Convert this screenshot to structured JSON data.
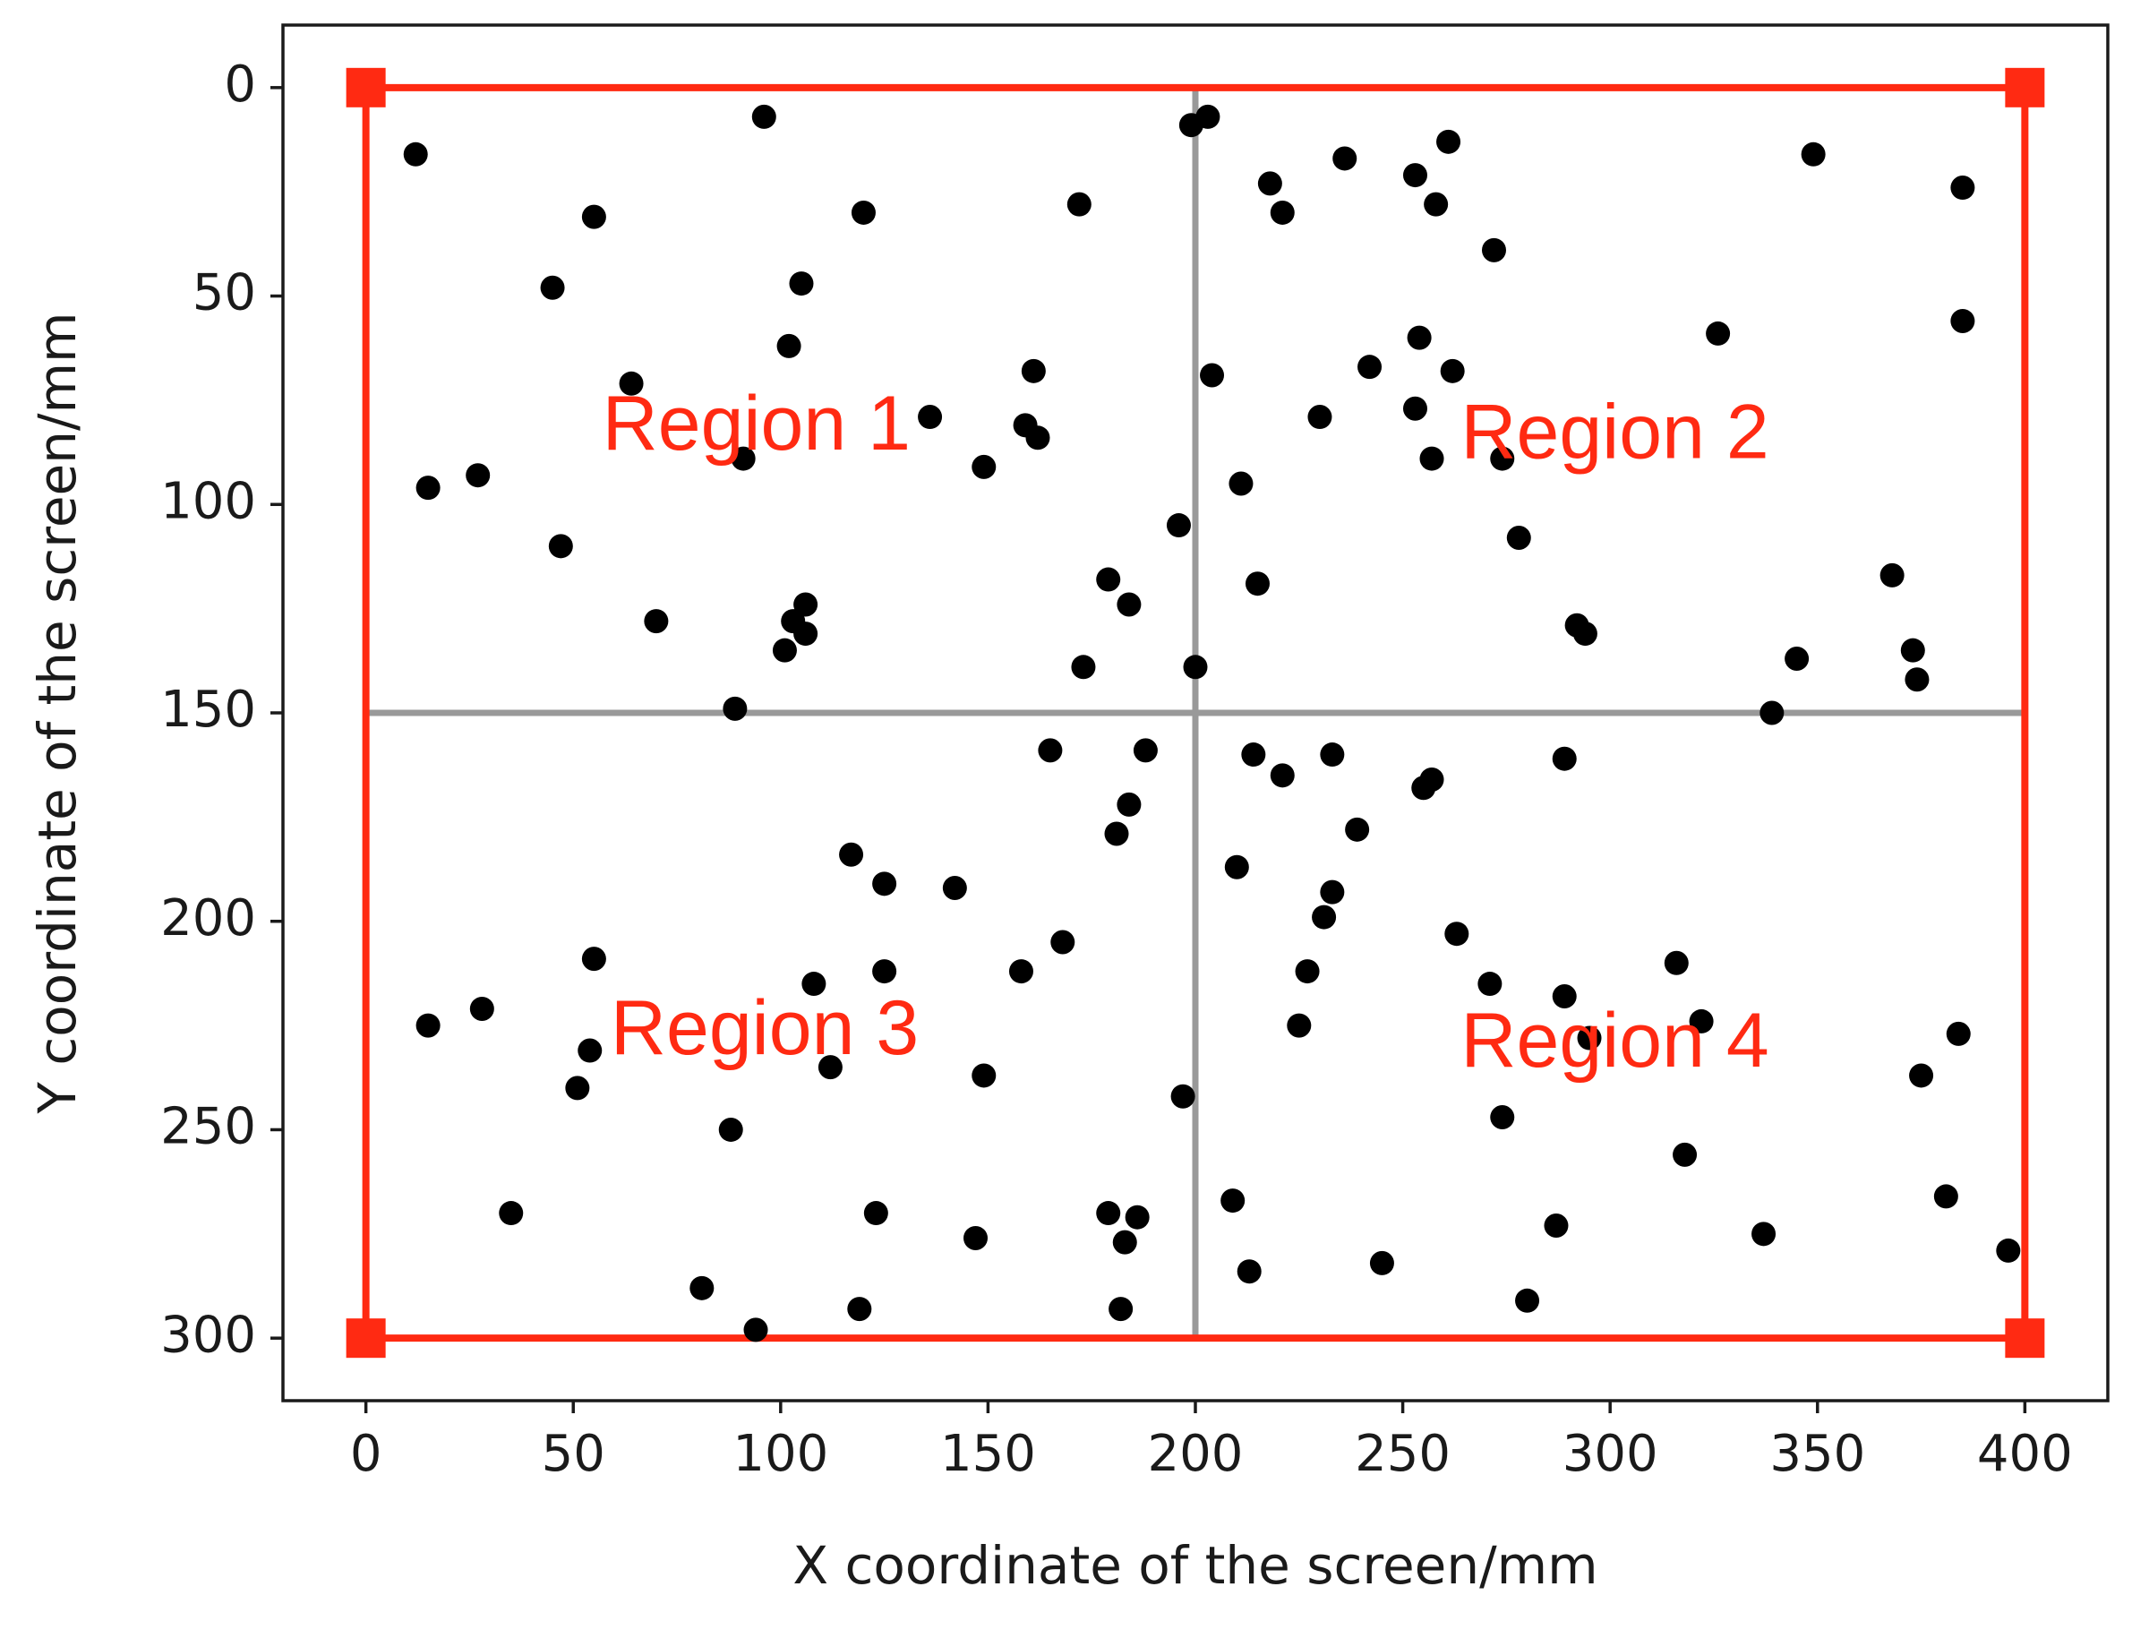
{
  "chart_data": {
    "type": "scatter",
    "xlabel": "X coordinate of the screen/mm",
    "ylabel": "Y coordinate of the screen/mm",
    "xlim": [
      -20,
      420
    ],
    "ylim": [
      315,
      -15
    ],
    "y_inverted": true,
    "xticks": [
      0,
      50,
      100,
      150,
      200,
      250,
      300,
      350,
      400
    ],
    "xtick_labels": [
      "0",
      "50",
      "100",
      "150",
      "200",
      "250",
      "300",
      "350",
      "400"
    ],
    "yticks": [
      0,
      50,
      100,
      150,
      200,
      250,
      300
    ],
    "ytick_labels": [
      "0",
      "50",
      "100",
      "150",
      "200",
      "250",
      "300"
    ],
    "grid": false,
    "colors": {
      "points": "#000000",
      "boundary": "#ff2a12",
      "dividers": "#999999",
      "region_text": "#ff2a12"
    },
    "boundary": {
      "corners": [
        [
          0,
          0
        ],
        [
          400,
          0
        ],
        [
          400,
          300
        ],
        [
          0,
          300
        ]
      ]
    },
    "dividers": {
      "x": 200,
      "y": 150
    },
    "regions": [
      {
        "label": "Region 1",
        "x": 57,
        "y": 82
      },
      {
        "label": "Region 2",
        "x": 264,
        "y": 84
      },
      {
        "label": "Region 3",
        "x": 59,
        "y": 227
      },
      {
        "label": "Region 4",
        "x": 264,
        "y": 230
      }
    ],
    "points": [
      [
        12,
        16
      ],
      [
        96,
        7
      ],
      [
        55,
        31
      ],
      [
        120,
        30
      ],
      [
        172,
        28
      ],
      [
        199,
        9
      ],
      [
        203,
        7
      ],
      [
        218,
        23
      ],
      [
        221,
        30
      ],
      [
        236,
        17
      ],
      [
        253,
        21
      ],
      [
        261,
        13
      ],
      [
        258,
        28
      ],
      [
        272,
        39
      ],
      [
        349,
        16
      ],
      [
        385,
        24
      ],
      [
        385,
        56
      ],
      [
        45,
        48
      ],
      [
        105,
        47
      ],
      [
        102,
        62
      ],
      [
        161,
        68
      ],
      [
        64,
        71
      ],
      [
        136,
        79
      ],
      [
        159,
        81
      ],
      [
        162,
        84
      ],
      [
        91,
        89
      ],
      [
        149,
        91
      ],
      [
        15,
        96
      ],
      [
        27,
        93
      ],
      [
        204,
        69
      ],
      [
        230,
        79
      ],
      [
        242,
        67
      ],
      [
        254,
        60
      ],
      [
        262,
        68
      ],
      [
        253,
        77
      ],
      [
        257,
        89
      ],
      [
        274,
        89
      ],
      [
        326,
        59
      ],
      [
        211,
        95
      ],
      [
        196,
        105
      ],
      [
        278,
        108
      ],
      [
        47,
        110
      ],
      [
        179,
        118
      ],
      [
        215,
        119
      ],
      [
        184,
        124
      ],
      [
        106,
        124
      ],
      [
        103,
        128
      ],
      [
        106,
        131
      ],
      [
        101,
        135
      ],
      [
        70,
        128
      ],
      [
        173,
        139
      ],
      [
        200,
        139
      ],
      [
        292,
        129
      ],
      [
        294,
        131
      ],
      [
        368,
        117
      ],
      [
        345,
        137
      ],
      [
        373,
        135
      ],
      [
        374,
        142
      ],
      [
        89,
        149
      ],
      [
        339,
        150
      ],
      [
        165,
        159
      ],
      [
        188,
        159
      ],
      [
        214,
        160
      ],
      [
        221,
        165
      ],
      [
        233,
        160
      ],
      [
        255,
        168
      ],
      [
        257,
        166
      ],
      [
        289,
        161
      ],
      [
        184,
        172
      ],
      [
        181,
        179
      ],
      [
        239,
        178
      ],
      [
        117,
        184
      ],
      [
        125,
        191
      ],
      [
        142,
        192
      ],
      [
        210,
        187
      ],
      [
        233,
        193
      ],
      [
        231,
        199
      ],
      [
        168,
        205
      ],
      [
        263,
        203
      ],
      [
        55,
        209
      ],
      [
        125,
        212
      ],
      [
        158,
        212
      ],
      [
        227,
        212
      ],
      [
        108,
        215
      ],
      [
        271,
        215
      ],
      [
        289,
        218
      ],
      [
        316,
        210
      ],
      [
        15,
        225
      ],
      [
        28,
        221
      ],
      [
        225,
        225
      ],
      [
        322,
        224
      ],
      [
        295,
        228
      ],
      [
        384,
        227
      ],
      [
        54,
        231
      ],
      [
        112,
        235
      ],
      [
        149,
        237
      ],
      [
        51,
        240
      ],
      [
        375,
        237
      ],
      [
        197,
        242
      ],
      [
        274,
        247
      ],
      [
        88,
        250
      ],
      [
        318,
        256
      ],
      [
        35,
        270
      ],
      [
        123,
        270
      ],
      [
        147,
        276
      ],
      [
        179,
        270
      ],
      [
        186,
        271
      ],
      [
        183,
        277
      ],
      [
        209,
        267
      ],
      [
        287,
        273
      ],
      [
        337,
        275
      ],
      [
        381,
        266
      ],
      [
        396,
        279
      ],
      [
        81,
        288
      ],
      [
        213,
        284
      ],
      [
        245,
        282
      ],
      [
        280,
        291
      ],
      [
        94,
        298
      ],
      [
        119,
        293
      ],
      [
        182,
        293
      ]
    ]
  }
}
